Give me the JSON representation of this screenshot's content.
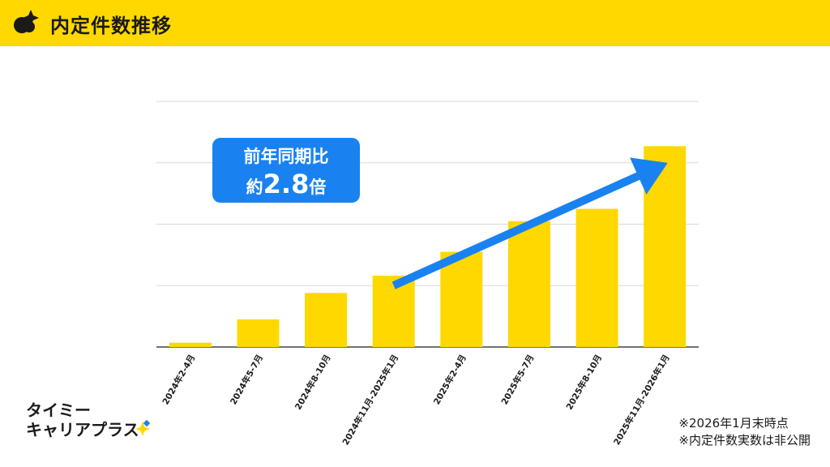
{
  "header": {
    "title": "内定件数推移"
  },
  "callout": {
    "line1": "前年同期比",
    "prefix": "約",
    "value": "2.8",
    "suffix": "倍"
  },
  "brand": {
    "line1": "タイミー",
    "line2": "キャリアプラス"
  },
  "notes": {
    "line1": "※2026年1月末時点",
    "line2": "※内定件数実数は非公開"
  },
  "colors": {
    "header": "#FFD800",
    "bar": "#FFD800",
    "accent": "#1A82F0",
    "grid": "#D9D9D9"
  },
  "chart_data": {
    "type": "bar",
    "categories": [
      "2024年2-4月",
      "2024年5-7月",
      "2024年8-10月",
      "2024年11月-2025年1月",
      "2025年2-4月",
      "2025年5-7月",
      "2025年8-10月",
      "2025年11月-2026年1月"
    ],
    "values": [
      0.07,
      0.45,
      0.88,
      1.16,
      1.55,
      2.05,
      2.25,
      3.27
    ],
    "ylim": [
      0,
      4
    ],
    "y_tick_labels_shown": false,
    "grid": true,
    "trend_arrow": {
      "from_category": "2024年11月-2025年1月",
      "to_category": "2025年11月-2026年1月"
    }
  }
}
